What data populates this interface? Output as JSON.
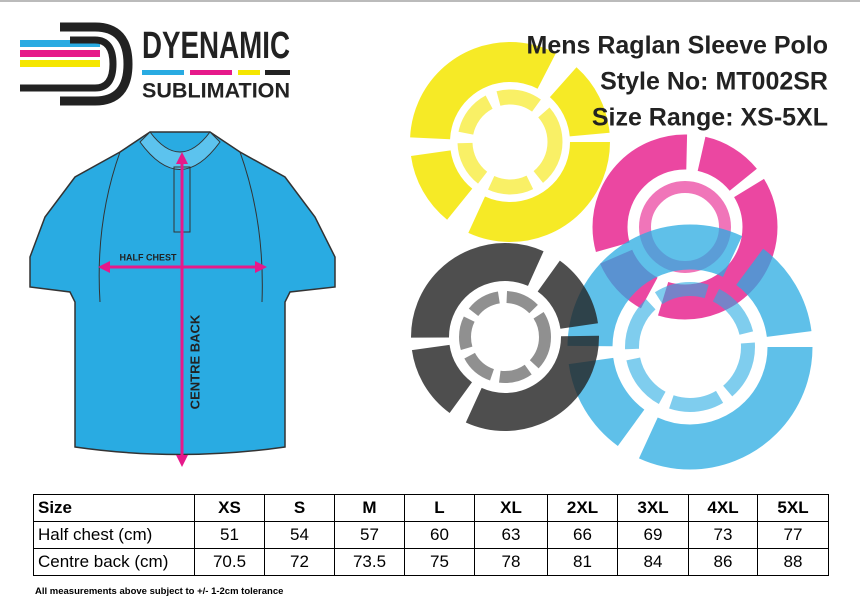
{
  "logo": {
    "name": "DYENAMIC",
    "tagline": "SUBLIMATION"
  },
  "header": {
    "lines": [
      "Mens Raglan Sleeve Polo",
      "Style No: MT002SR",
      "Size Range: XS-5XL"
    ]
  },
  "diagram": {
    "half_chest": "HALF CHEST",
    "centre_back": "CENTRE BACK"
  },
  "table": {
    "header": [
      "Size",
      "XS",
      "S",
      "M",
      "L",
      "XL",
      "2XL",
      "3XL",
      "4XL",
      "5XL"
    ],
    "rows": [
      [
        "Half chest (cm)",
        51,
        54,
        57,
        60,
        63,
        66,
        69,
        73,
        77
      ],
      [
        "Centre back (cm)",
        70.5,
        72,
        73.5,
        75,
        78,
        81,
        84,
        86,
        88
      ]
    ]
  },
  "footnote": "All measurements above subject to +/- 1-2cm tolerance"
}
